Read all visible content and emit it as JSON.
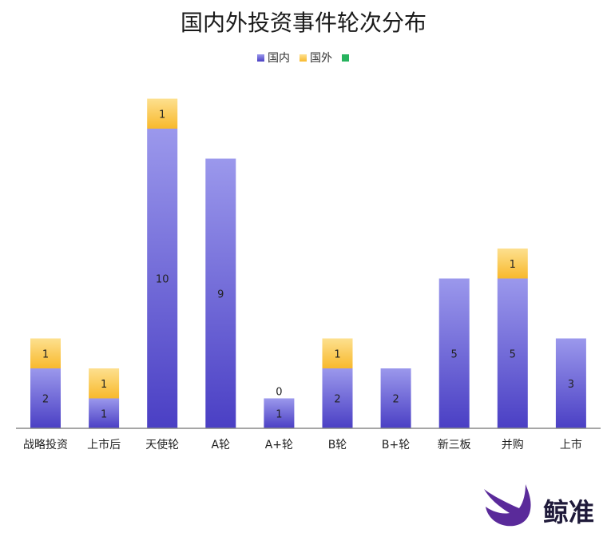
{
  "chart_data": {
    "type": "bar",
    "stacked": true,
    "title": "国内外投资事件轮次分布",
    "xlabel": "",
    "ylabel": "",
    "ylim": [
      0,
      11
    ],
    "grid": false,
    "legend_position": "top-center",
    "categories": [
      "战略投资",
      "上市后",
      "天使轮",
      "A轮",
      "A+轮",
      "B轮",
      "B+轮",
      "新三板",
      "并购",
      "上市"
    ],
    "series": [
      {
        "name": "国内",
        "color": "#6f66d9",
        "values": [
          2,
          1,
          10,
          9,
          1,
          2,
          2,
          5,
          5,
          3
        ]
      },
      {
        "name": "国外",
        "color": "#fcc545",
        "values": [
          1,
          1,
          1,
          null,
          0,
          1,
          null,
          null,
          1,
          null
        ]
      },
      {
        "name": "",
        "color": "#27b35e",
        "values": [
          null,
          null,
          null,
          null,
          null,
          null,
          null,
          null,
          null,
          null
        ]
      }
    ]
  },
  "brand": {
    "name": "鲸准",
    "logo_icon": "whale-logo-icon",
    "color": "#5a2a9a"
  }
}
